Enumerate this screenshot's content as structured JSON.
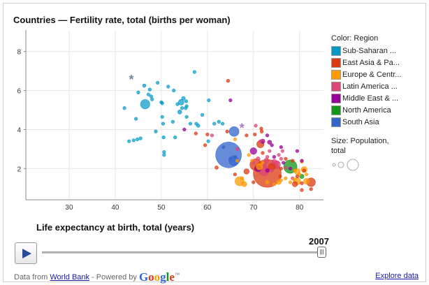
{
  "title": "Countries — Fertility rate, total (births per woman)",
  "legend": {
    "color_title": "Color: Region",
    "regions": [
      {
        "label": "Sub-Saharan ...",
        "color": "#0099c6"
      },
      {
        "label": "East Asia & Pa...",
        "color": "#dc3912"
      },
      {
        "label": "Europe & Centr...",
        "color": "#ff9900"
      },
      {
        "label": "Latin America ...",
        "color": "#dd4477"
      },
      {
        "label": "Middle East & ...",
        "color": "#990099"
      },
      {
        "label": "North America",
        "color": "#109618"
      },
      {
        "label": "South Asia",
        "color": "#3366cc"
      }
    ],
    "size_title": "Size: Population, total"
  },
  "player": {
    "year": "2007",
    "progress": 1.0
  },
  "footer": {
    "data_from": "Data from ",
    "source_link": "World Bank",
    "powered": " - Powered by ",
    "google": "Google",
    "tm": "™",
    "explore": "Explore data"
  },
  "chart_data": {
    "type": "scatter",
    "title": "Countries — Fertility rate, total (births per woman)",
    "xlabel": "Life expectancy at birth, total (years)",
    "ylabel": "",
    "xlim": [
      20.6,
      85.2
    ],
    "ylim": [
      0.4,
      9.1
    ],
    "xticks": [
      30,
      40,
      50,
      60,
      70,
      80
    ],
    "yticks": [
      2,
      4,
      6,
      8
    ],
    "grid": true,
    "legend_position": "right",
    "size_unit": "Population, total (millions, approx.)",
    "point_fields": [
      "life_expectancy",
      "fertility_rate",
      "population_m",
      "region_index"
    ],
    "points": [
      [
        42,
        5.1,
        8,
        0
      ],
      [
        43,
        3.4,
        3,
        0
      ],
      [
        44,
        3.45,
        3,
        0
      ],
      [
        45.5,
        3.55,
        3,
        0
      ],
      [
        44.5,
        4.55,
        4,
        0
      ],
      [
        45,
        5.9,
        3,
        0
      ],
      [
        46.3,
        6.25,
        20,
        0
      ],
      [
        46.5,
        5.3,
        148,
        0
      ],
      [
        47.2,
        5.8,
        4,
        0
      ],
      [
        47.8,
        5.7,
        5,
        0
      ],
      [
        48,
        5.55,
        4,
        0
      ],
      [
        47.5,
        6.05,
        3,
        0
      ],
      [
        48.8,
        3.9,
        2,
        0
      ],
      [
        50,
        5.4,
        4,
        0
      ],
      [
        50.2,
        5.35,
        3,
        0
      ],
      [
        50.2,
        4.65,
        4,
        0
      ],
      [
        50.4,
        4.3,
        6,
        0
      ],
      [
        50.5,
        3.6,
        3,
        0
      ],
      [
        50.6,
        2.7,
        12,
        0
      ],
      [
        50.6,
        2.85,
        4,
        0
      ],
      [
        51.5,
        6.2,
        3,
        0
      ],
      [
        52.5,
        4.4,
        4,
        0
      ],
      [
        52.7,
        6.0,
        4,
        0
      ],
      [
        53,
        3.6,
        3,
        0
      ],
      [
        54,
        4.9,
        30,
        0
      ],
      [
        54.5,
        5.1,
        5,
        0
      ],
      [
        54.3,
        5.4,
        55,
        0
      ],
      [
        54.8,
        5.6,
        25,
        0
      ],
      [
        55.4,
        5.45,
        4,
        0
      ],
      [
        55.3,
        5.1,
        4,
        0
      ],
      [
        55.5,
        4.65,
        12,
        0
      ],
      [
        55.5,
        5.2,
        3,
        0
      ],
      [
        57.2,
        6.95,
        3,
        0
      ],
      [
        57.6,
        4.3,
        5,
        0
      ],
      [
        58,
        4.2,
        20,
        0
      ],
      [
        58.9,
        4.75,
        8,
        0
      ],
      [
        60.3,
        5.5,
        3,
        0
      ],
      [
        60.2,
        3.4,
        3,
        0
      ],
      [
        61.5,
        4.3,
        3,
        0
      ],
      [
        62.5,
        4.4,
        3,
        0
      ],
      [
        63.3,
        4.3,
        3,
        0
      ],
      [
        56.3,
        4.3,
        12,
        0
      ],
      [
        53.5,
        5.3,
        3,
        0
      ],
      [
        49.2,
        6.4,
        3,
        0
      ],
      [
        44.8,
        3.5,
        2,
        0
      ],
      [
        73,
        1.75,
        1318,
        1
      ],
      [
        70.5,
        2.2,
        230,
        1
      ],
      [
        71.5,
        3.25,
        90,
        1
      ],
      [
        74,
        2.1,
        86,
        1
      ],
      [
        68.5,
        1.85,
        48,
        1
      ],
      [
        62,
        2.05,
        20,
        1
      ],
      [
        82.5,
        1.3,
        128,
        1
      ],
      [
        79,
        1.2,
        48,
        1
      ],
      [
        59.5,
        3.2,
        3,
        1
      ],
      [
        64.5,
        6.5,
        2,
        1
      ],
      [
        60,
        3.75,
        4,
        1
      ],
      [
        64.3,
        3.9,
        3,
        1
      ],
      [
        68.5,
        3.7,
        3,
        1
      ],
      [
        70.3,
        3.75,
        3,
        1
      ],
      [
        71.8,
        3.9,
        3,
        1
      ],
      [
        71.7,
        4.05,
        3,
        1
      ],
      [
        72,
        2.8,
        3,
        1
      ],
      [
        76,
        2.0,
        3,
        1
      ],
      [
        77,
        2.5,
        3,
        1
      ],
      [
        78.5,
        2.4,
        3,
        1
      ],
      [
        80.5,
        0.9,
        4,
        1
      ],
      [
        82.5,
        0.95,
        3,
        1
      ],
      [
        81,
        1.9,
        21,
        1
      ],
      [
        80.5,
        1.25,
        4,
        1
      ],
      [
        70,
        1.3,
        3,
        1
      ],
      [
        66,
        1.7,
        3,
        1
      ],
      [
        57.5,
        3.8,
        3,
        1
      ],
      [
        75.8,
        1.6,
        3,
        1
      ],
      [
        79.5,
        1.6,
        3,
        1
      ],
      [
        67,
        1.35,
        142,
        2
      ],
      [
        79.5,
        1.35,
        82,
        2
      ],
      [
        71.3,
        2.1,
        70,
        2
      ],
      [
        81,
        1.95,
        62,
        2
      ],
      [
        81.5,
        1.35,
        59,
        2
      ],
      [
        79.5,
        1.85,
        61,
        2
      ],
      [
        68,
        1.2,
        46,
        2
      ],
      [
        75.5,
        1.3,
        38,
        2
      ],
      [
        73,
        1.3,
        22,
        2
      ],
      [
        76,
        1.4,
        10,
        2
      ],
      [
        77,
        1.5,
        10,
        2
      ],
      [
        78,
        1.3,
        8,
        2
      ],
      [
        80,
        1.7,
        9,
        2
      ],
      [
        80.5,
        2.35,
        4,
        2
      ],
      [
        67.5,
        1.5,
        15,
        2
      ],
      [
        66,
        3.5,
        7,
        2
      ],
      [
        66.5,
        2.4,
        3,
        2
      ],
      [
        69,
        2.7,
        3,
        2
      ],
      [
        72,
        2.3,
        5,
        2
      ],
      [
        74.5,
        1.2,
        10,
        2
      ],
      [
        79,
        1.9,
        5,
        2
      ],
      [
        81.5,
        1.7,
        8,
        2
      ],
      [
        78.8,
        1.45,
        5,
        2
      ],
      [
        69.7,
        2.4,
        3,
        2
      ],
      [
        72.3,
        1.9,
        190,
        3
      ],
      [
        75,
        2.2,
        105,
        3
      ],
      [
        72.8,
        2.4,
        45,
        3
      ],
      [
        71,
        2.5,
        28,
        3
      ],
      [
        74.5,
        2.35,
        39,
        3
      ],
      [
        73,
        2.6,
        15,
        3
      ],
      [
        75.5,
        2.7,
        7,
        3
      ],
      [
        76,
        2.5,
        3,
        3
      ],
      [
        61,
        3.7,
        9,
        3
      ],
      [
        70.5,
        4.2,
        3,
        3
      ],
      [
        71.5,
        3.4,
        3,
        3
      ],
      [
        73.5,
        2.9,
        3,
        3
      ],
      [
        78.5,
        1.5,
        11,
        3
      ],
      [
        74,
        1.9,
        7,
        3
      ],
      [
        76.3,
        2.9,
        3,
        3
      ],
      [
        66.5,
        3.0,
        4,
        3
      ],
      [
        70,
        2.3,
        3,
        3
      ],
      [
        72.5,
        2.2,
        3,
        3
      ],
      [
        75.3,
        2.3,
        3,
        3
      ],
      [
        77,
        2.05,
        3,
        3
      ],
      [
        70,
        2.9,
        75,
        4
      ],
      [
        71,
        2.0,
        71,
        4
      ],
      [
        72,
        3.4,
        34,
        4
      ],
      [
        73.5,
        3.35,
        29,
        4
      ],
      [
        76.5,
        2.3,
        3,
        4
      ],
      [
        73,
        3.7,
        3,
        4
      ],
      [
        74.5,
        2.6,
        4,
        4
      ],
      [
        76,
        3.1,
        3,
        4
      ],
      [
        79.5,
        2.9,
        7,
        4
      ],
      [
        80.5,
        2.4,
        3,
        4
      ],
      [
        55,
        4.0,
        3,
        4
      ],
      [
        65,
        5.5,
        10,
        4
      ],
      [
        78,
        2.0,
        6,
        4
      ],
      [
        73,
        1.9,
        25,
        4
      ],
      [
        74,
        3.2,
        3,
        4
      ],
      [
        78,
        2.1,
        302,
        5
      ],
      [
        80.5,
        1.6,
        33,
        5
      ],
      [
        64.6,
        2.7,
        1125,
        6
      ],
      [
        65.8,
        3.9,
        162,
        6
      ],
      [
        65.7,
        2.4,
        158,
        6
      ],
      [
        63.5,
        3.1,
        5,
        6
      ],
      [
        66.5,
        2.4,
        20,
        6
      ],
      [
        65,
        2.5,
        3,
        6
      ],
      [
        66,
        2.6,
        3,
        6
      ]
    ],
    "asterisk_points": [
      [
        43.5,
        6.6,
        6
      ],
      [
        67.5,
        4.1,
        4
      ]
    ]
  }
}
